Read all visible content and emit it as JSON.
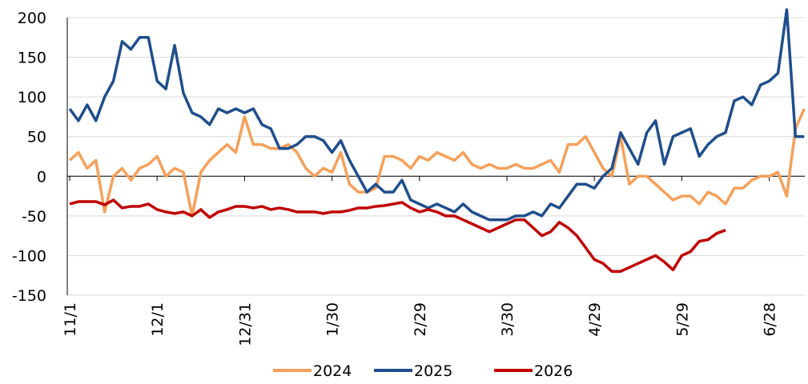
{
  "chart_data": {
    "type": "line",
    "categories": [
      "11/1",
      null,
      null,
      null,
      null,
      null,
      null,
      null,
      null,
      null,
      "12/1",
      null,
      null,
      null,
      null,
      null,
      null,
      null,
      null,
      null,
      "12/31",
      null,
      null,
      null,
      null,
      null,
      null,
      null,
      null,
      null,
      "1/30",
      null,
      null,
      null,
      null,
      null,
      null,
      null,
      null,
      null,
      "2/29",
      null,
      null,
      null,
      null,
      null,
      null,
      null,
      null,
      null,
      "3/30",
      null,
      null,
      null,
      null,
      null,
      null,
      null,
      null,
      null,
      "4/29",
      null,
      null,
      null,
      null,
      null,
      null,
      null,
      null,
      null,
      "5/29",
      null,
      null,
      null,
      null,
      null,
      null,
      null,
      null,
      null,
      "6/28",
      null,
      null,
      null,
      null
    ],
    "series": [
      {
        "name": "2024",
        "color": "#f5a05a",
        "values": [
          20,
          30,
          10,
          20,
          -45,
          0,
          10,
          -5,
          10,
          15,
          25,
          0,
          10,
          5,
          -50,
          5,
          20,
          30,
          40,
          30,
          75,
          40,
          40,
          35,
          35,
          40,
          30,
          10,
          0,
          10,
          5,
          30,
          -10,
          -20,
          -20,
          -15,
          25,
          25,
          20,
          10,
          25,
          20,
          30,
          25,
          20,
          30,
          15,
          10,
          15,
          10,
          10,
          15,
          10,
          10,
          15,
          20,
          5,
          40,
          40,
          50,
          30,
          10,
          0,
          50,
          -10,
          0,
          0,
          -10,
          -20,
          -30,
          -25,
          -25,
          -35,
          -20,
          -25,
          -35,
          -15,
          -15,
          -5,
          0,
          0,
          5,
          -25,
          60,
          85
        ]
      },
      {
        "name": "2025",
        "color": "#1f4e8c",
        "values": [
          85,
          70,
          90,
          70,
          100,
          120,
          170,
          160,
          175,
          175,
          120,
          110,
          165,
          105,
          80,
          75,
          65,
          85,
          80,
          85,
          80,
          85,
          65,
          60,
          35,
          35,
          40,
          50,
          50,
          45,
          30,
          45,
          20,
          0,
          -20,
          -10,
          -20,
          -20,
          -5,
          -30,
          -35,
          -40,
          -35,
          -40,
          -45,
          -35,
          -45,
          -50,
          -55,
          -55,
          -55,
          -50,
          -50,
          -45,
          -50,
          -35,
          -40,
          -25,
          -10,
          -10,
          -15,
          0,
          10,
          55,
          35,
          15,
          55,
          70,
          15,
          50,
          55,
          60,
          25,
          40,
          50,
          55,
          95,
          100,
          90,
          115,
          120,
          130,
          210,
          50,
          50
        ]
      },
      {
        "name": "2026",
        "color": "#c00000",
        "values": [
          -35,
          -32,
          -32,
          -32,
          -36,
          -30,
          -40,
          -38,
          -38,
          -35,
          -42,
          -45,
          -47,
          -45,
          -50,
          -42,
          -52,
          -45,
          -42,
          -38,
          -38,
          -40,
          -38,
          -42,
          -40,
          -42,
          -45,
          -45,
          -45,
          -47,
          -45,
          -45,
          -43,
          -40,
          -40,
          -38,
          -37,
          -35,
          -33,
          -40,
          -45,
          -42,
          -45,
          -50,
          -50,
          -55,
          -60,
          -65,
          -70,
          -65,
          -60,
          -55,
          -55,
          -65,
          -75,
          -70,
          -58,
          -65,
          -75,
          -90,
          -105,
          -110,
          -120,
          -120,
          -115,
          -110,
          -105,
          -100,
          -108,
          -118,
          -100,
          -95,
          -82,
          -80,
          -72,
          -68,
          null,
          null,
          null,
          null,
          null,
          null,
          null,
          null,
          null
        ]
      }
    ],
    "ylim": [
      -150,
      200
    ],
    "yticks": [
      -150,
      -100,
      -50,
      0,
      50,
      100,
      150,
      200
    ],
    "grid": true,
    "legend": "bottom"
  }
}
